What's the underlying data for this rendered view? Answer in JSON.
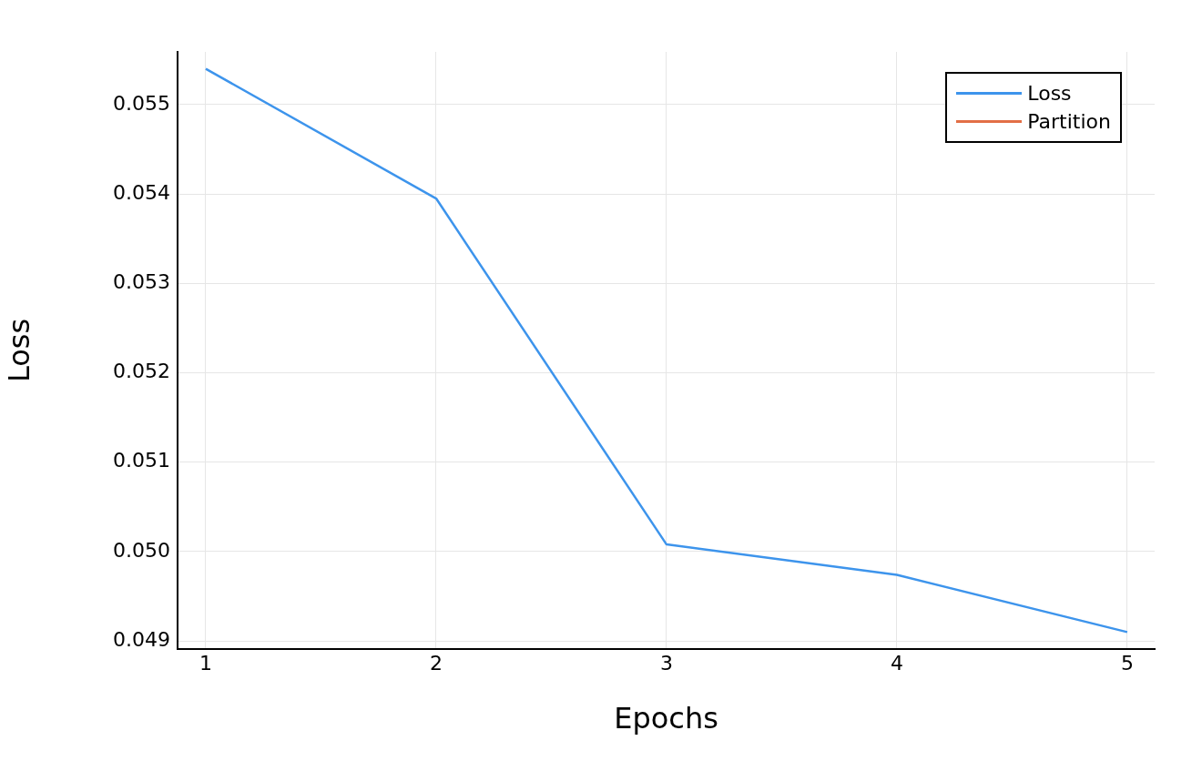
{
  "chart_data": {
    "type": "line",
    "xlabel": "Epochs",
    "ylabel": "Loss",
    "x": [
      1,
      2,
      3,
      4,
      5
    ],
    "series": [
      {
        "name": "Loss",
        "color": "#3d94ec",
        "values": [
          0.0554,
          0.05395,
          0.05008,
          0.04974,
          0.0491
        ]
      },
      {
        "name": "Partition",
        "color": "#e26f46",
        "values": [
          null,
          null,
          null,
          null,
          null
        ]
      }
    ],
    "xlim": [
      0.8775,
      5.119
    ],
    "xticks": [
      1,
      2,
      3,
      4,
      5
    ],
    "ylim": [
      0.04891,
      0.05559
    ],
    "yticks": [
      0.049,
      {
        "value": 0.05,
        "label": "0.050"
      },
      0.051,
      0.052,
      0.053,
      0.054,
      0.055
    ],
    "grid": true,
    "legend": "top right",
    "marker": "none",
    "line_style": "solid"
  }
}
